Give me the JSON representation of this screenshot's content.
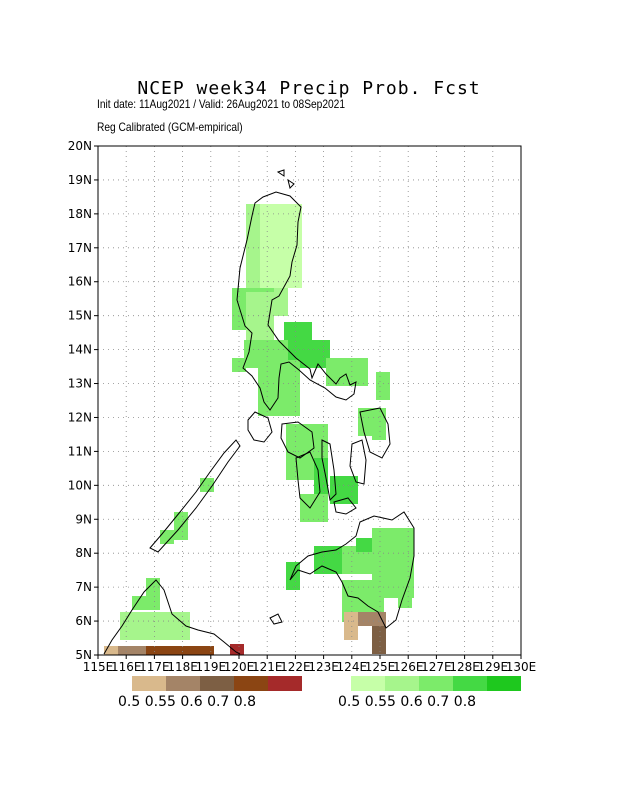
{
  "title": "NCEP week34 Precip Prob. Fcst",
  "subtitle_dates": "Init date: 11Aug2021 / Valid: 26Aug2021 to 08Sep2021",
  "subtitle_method": "Reg Calibrated (GCM-empirical)",
  "axes": {
    "lat_labels": [
      "5N",
      "6N",
      "7N",
      "8N",
      "9N",
      "10N",
      "11N",
      "12N",
      "13N",
      "14N",
      "15N",
      "16N",
      "17N",
      "18N",
      "19N",
      "20N"
    ],
    "lon_labels": [
      "115E",
      "116E",
      "117E",
      "118E",
      "119E",
      "120E",
      "121E",
      "122E",
      "123E",
      "124E",
      "125E",
      "126E",
      "127E",
      "128E",
      "129E",
      "130E"
    ],
    "lon_range": [
      115,
      130
    ],
    "lat_range": [
      5,
      20
    ],
    "grid": true
  },
  "legend_dry": {
    "labels": [
      "0.5",
      "0.55",
      "0.6",
      "0.7",
      "0.8"
    ],
    "colors": [
      "#d9b98c",
      "#a48467",
      "#7d5f44",
      "#8b4513",
      "#a52a2a"
    ]
  },
  "legend_wet": {
    "labels": [
      "0.5",
      "0.55",
      "0.6",
      "0.7",
      "0.8"
    ],
    "colors": [
      "#c6ffa8",
      "#a6f58c",
      "#7ceb6a",
      "#44d944",
      "#1ec81e"
    ]
  }
}
